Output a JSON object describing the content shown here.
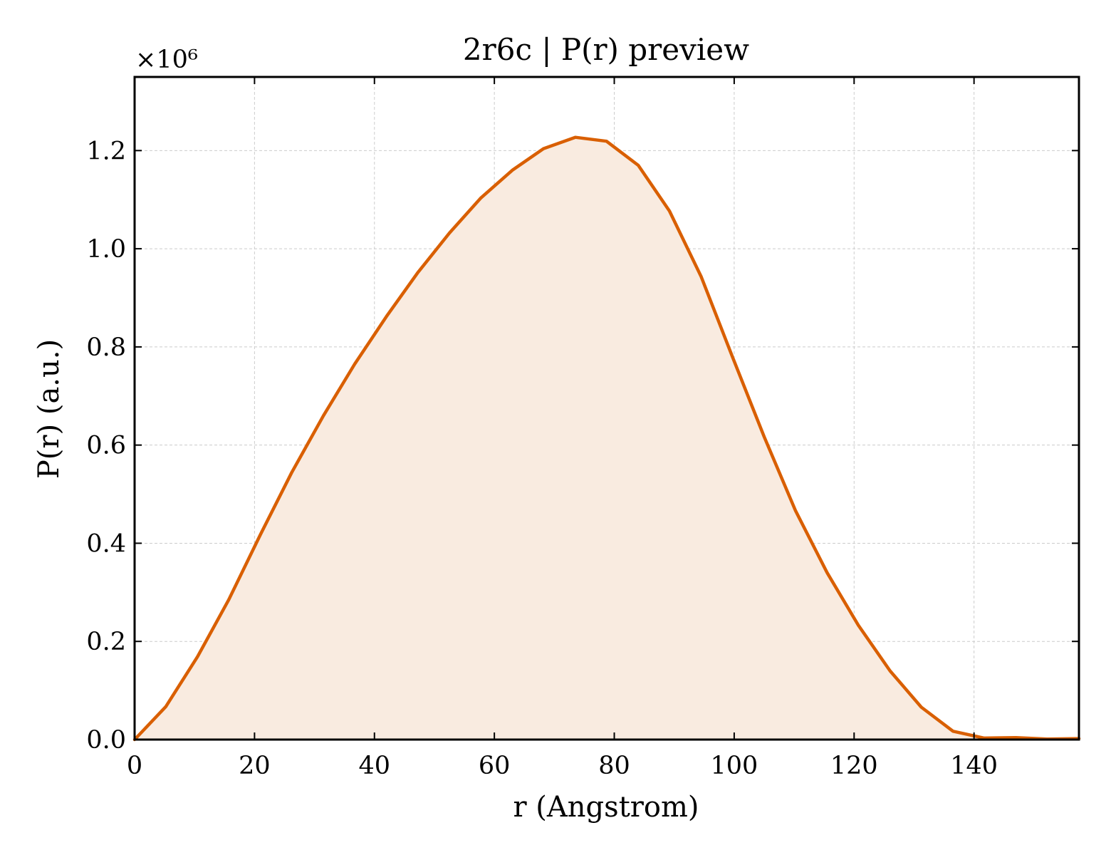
{
  "chart_data": {
    "type": "area",
    "title": "2r6c | P(r) preview",
    "xlabel": "r (Angstrom)",
    "ylabel": "P(r) (a.u.)",
    "y_offset_label": "×10⁶",
    "xlim": [
      0,
      157.5
    ],
    "ylim": [
      0,
      1.35
    ],
    "x_ticks": [
      0,
      20,
      40,
      60,
      80,
      100,
      120,
      140
    ],
    "x_tick_labels": [
      "0",
      "20",
      "40",
      "60",
      "80",
      "100",
      "120",
      "140"
    ],
    "y_ticks": [
      0.0,
      0.2,
      0.4,
      0.6,
      0.8,
      1.0,
      1.2
    ],
    "y_tick_labels": [
      "0.0",
      "0.2",
      "0.4",
      "0.6",
      "0.8",
      "1.0",
      "1.2"
    ],
    "grid": true,
    "colors": {
      "line": "#d95f02",
      "fill": "#f9ebe0"
    },
    "series": [
      {
        "x": [
          0,
          5.2,
          10.5,
          15.7,
          21.0,
          26.2,
          31.5,
          36.7,
          42.0,
          47.2,
          52.5,
          57.7,
          63.0,
          68.2,
          73.5,
          78.7,
          84.0,
          89.2,
          94.5,
          99.7,
          105.0,
          110.2,
          115.5,
          120.7,
          126.0,
          131.2,
          136.5,
          141.7,
          147.0,
          152.2,
          157.5
        ],
        "values": [
          0.0,
          0.067,
          0.169,
          0.285,
          0.418,
          0.544,
          0.66,
          0.765,
          0.862,
          0.951,
          1.032,
          1.103,
          1.16,
          1.204,
          1.227,
          1.219,
          1.17,
          1.077,
          0.943,
          0.78,
          0.617,
          0.467,
          0.34,
          0.233,
          0.14,
          0.066,
          0.017,
          0.003,
          0.004,
          0.001,
          0.002
        ]
      }
    ]
  }
}
